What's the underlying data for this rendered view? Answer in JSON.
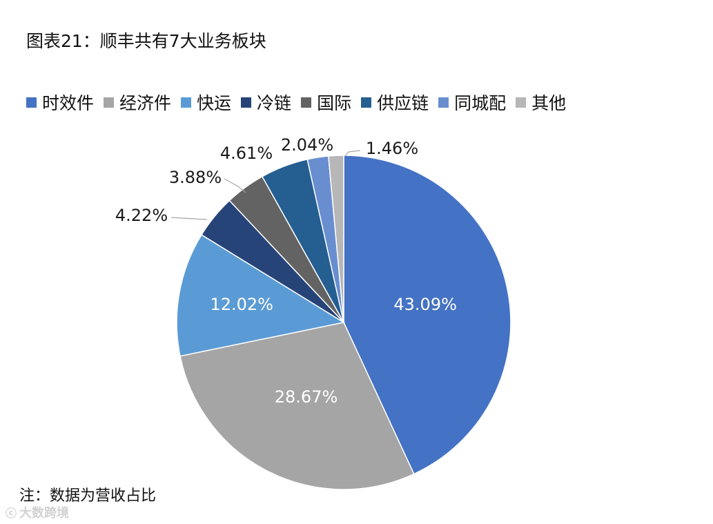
{
  "title": "图表21：顺丰共有7大业务板块",
  "note": "注：数据为营收占比",
  "watermark": "大数跨境",
  "chart_data": {
    "type": "pie",
    "categories": [
      "时效件",
      "经济件",
      "快运",
      "冷链",
      "国际",
      "供应链",
      "同城配",
      "其他"
    ],
    "values": [
      43.09,
      28.67,
      12.02,
      4.22,
      3.88,
      4.61,
      2.04,
      1.46
    ],
    "labels": [
      "43.09%",
      "28.67%",
      "12.02%",
      "4.22%",
      "3.88%",
      "4.61%",
      "2.04%",
      "1.46%"
    ],
    "colors": [
      "#4472C4",
      "#A5A5A5",
      "#5B9BD5",
      "#264478",
      "#636363",
      "#255E91",
      "#698ED0",
      "#B7B7B7"
    ],
    "legend_position": "top"
  }
}
